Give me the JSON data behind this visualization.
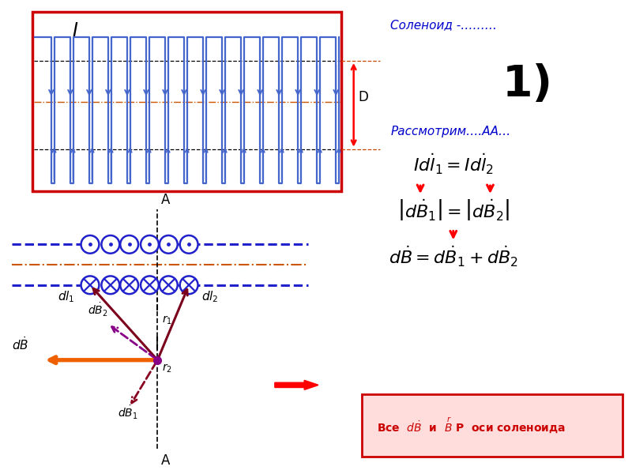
{
  "bg_color": "#ffffff",
  "solenoid_box_color": "#cc0000",
  "title_I": "I",
  "label_D": "D",
  "label_solenoid": "Соленоид -………",
  "label_rassm": "Рассмотрим….АА…",
  "label_1": "1)",
  "blue_dash_color": "#2222cc",
  "orange_dash_color": "#cc5500",
  "dot_circle_color": "#2222cc",
  "cross_circle_color": "#2222cc",
  "arrow_orange_color": "#ee6600",
  "arrow_purple_color": "#880088",
  "arrow_darkred_color": "#7b001c",
  "red_arrow_color": "#cc0000",
  "solenoid_line_color": "#4466cc"
}
